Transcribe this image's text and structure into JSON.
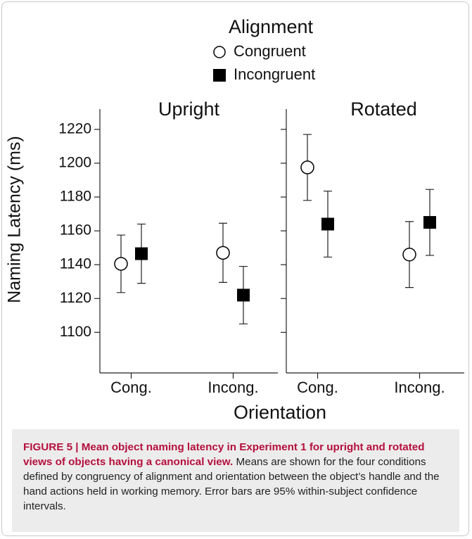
{
  "chart_data": {
    "type": "errorbar",
    "legend_title": "Alignment",
    "series": [
      {
        "name": "Congruent",
        "marker": "open-circle",
        "color": "#000000"
      },
      {
        "name": "Incongruent",
        "marker": "filled-square",
        "color": "#000000"
      }
    ],
    "ylabel": "Naming Latency (ms)",
    "xlabel": "Orientation",
    "ylim": [
      1076,
      1232
    ],
    "yticks": [
      1100,
      1120,
      1140,
      1160,
      1180,
      1200,
      1220
    ],
    "panels": [
      {
        "title": "Upright",
        "categories": [
          "Cong.",
          "Incong."
        ],
        "series": [
          {
            "values": [
              1140.5,
              1147
            ],
            "errors": [
              17,
              17.5
            ]
          },
          {
            "values": [
              1146.5,
              1122
            ],
            "errors": [
              17.5,
              17
            ]
          }
        ]
      },
      {
        "title": "Rotated",
        "categories": [
          "Cong.",
          "Incong."
        ],
        "series": [
          {
            "values": [
              1197.5,
              1146
            ],
            "errors": [
              19.5,
              19.5
            ]
          },
          {
            "values": [
              1164,
              1165
            ],
            "errors": [
              19.5,
              19.5
            ]
          }
        ]
      }
    ]
  },
  "caption": {
    "heading": "FIGURE 5 | Mean object naming latency in Experiment 1 for upright and rotated views of objects having a canonical view.",
    "text": "Means are shown for the four conditions defined by congruency of alignment and orientation between the object’s handle and the hand actions held in working memory. Error bars are 95% within-subject confidence intervals."
  }
}
